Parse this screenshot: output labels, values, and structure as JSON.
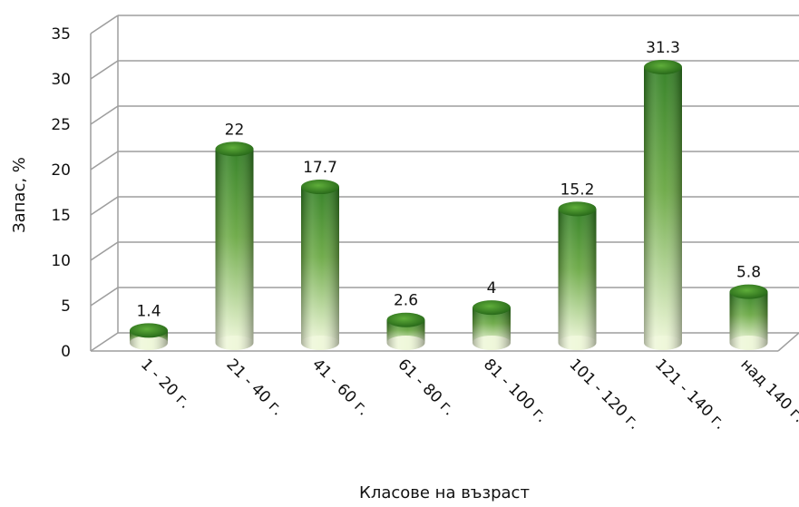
{
  "chart_data": {
    "type": "bar",
    "categories": [
      "1 - 20 г.",
      "21 - 40 г.",
      "41 - 60 г.",
      "61 - 80 г.",
      "81 - 100 г.",
      "101 - 120 г.",
      "121 - 140 г.",
      "над 140 г."
    ],
    "values": [
      1.4,
      22,
      17.7,
      2.6,
      4,
      15.2,
      31.3,
      5.8
    ],
    "data_labels": [
      "1.4",
      "22",
      "17.7",
      "2.6",
      "4",
      "15.2",
      "31.3",
      "5.8"
    ],
    "xlabel": "Класове на възраст",
    "ylabel": "Запас, %",
    "ylim": [
      0,
      35
    ],
    "yticks": [
      "0",
      "5",
      "10",
      "15",
      "20",
      "25",
      "30",
      "35"
    ],
    "grid": true,
    "legend": "none",
    "style": "3d-cylinder",
    "colors": {
      "bar_top": "#2e7d1f",
      "bar_bottom": "#eef7d8",
      "grid": "#9e9e9e"
    }
  }
}
